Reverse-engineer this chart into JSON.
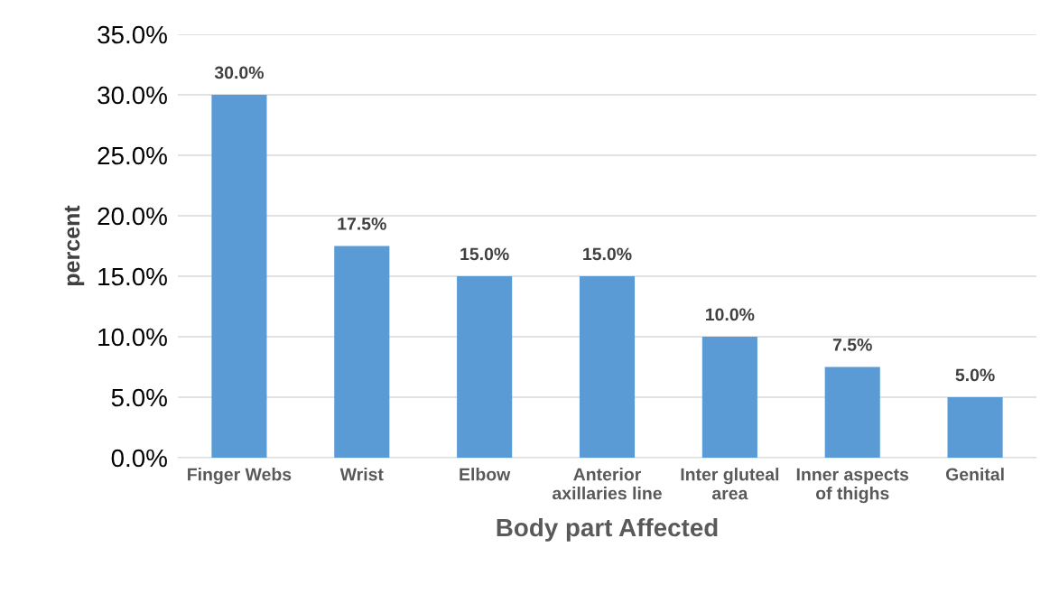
{
  "chart_data": {
    "type": "bar",
    "xlabel": "Body part Affected",
    "ylabel": "percent",
    "categories": [
      "Finger Webs",
      "Wrist",
      "Elbow",
      "Anterior\naxillaries line",
      "Inter gluteal\narea",
      "Inner aspects\nof thighs",
      "Genital"
    ],
    "values": [
      30,
      17.5,
      15,
      15,
      10,
      7.5,
      5
    ],
    "value_labels": [
      "30.0%",
      "17.5%",
      "15.0%",
      "15.0%",
      "10.0%",
      "7.5%",
      "5.0%"
    ],
    "color": "#5b9bd5",
    "ylim": [
      0,
      35
    ],
    "yticks": [
      {
        "value": 0,
        "label": "0.0%"
      },
      {
        "value": 5,
        "label": "5.0%"
      },
      {
        "value": 10,
        "label": "10.0%"
      },
      {
        "value": 15,
        "label": "15.0%"
      },
      {
        "value": 20,
        "label": "20.0%"
      },
      {
        "value": 25,
        "label": "25.0%"
      },
      {
        "value": 30,
        "label": "30.0%"
      },
      {
        "value": 35,
        "label": "35.0%"
      }
    ],
    "grid": "y",
    "legend": false
  }
}
